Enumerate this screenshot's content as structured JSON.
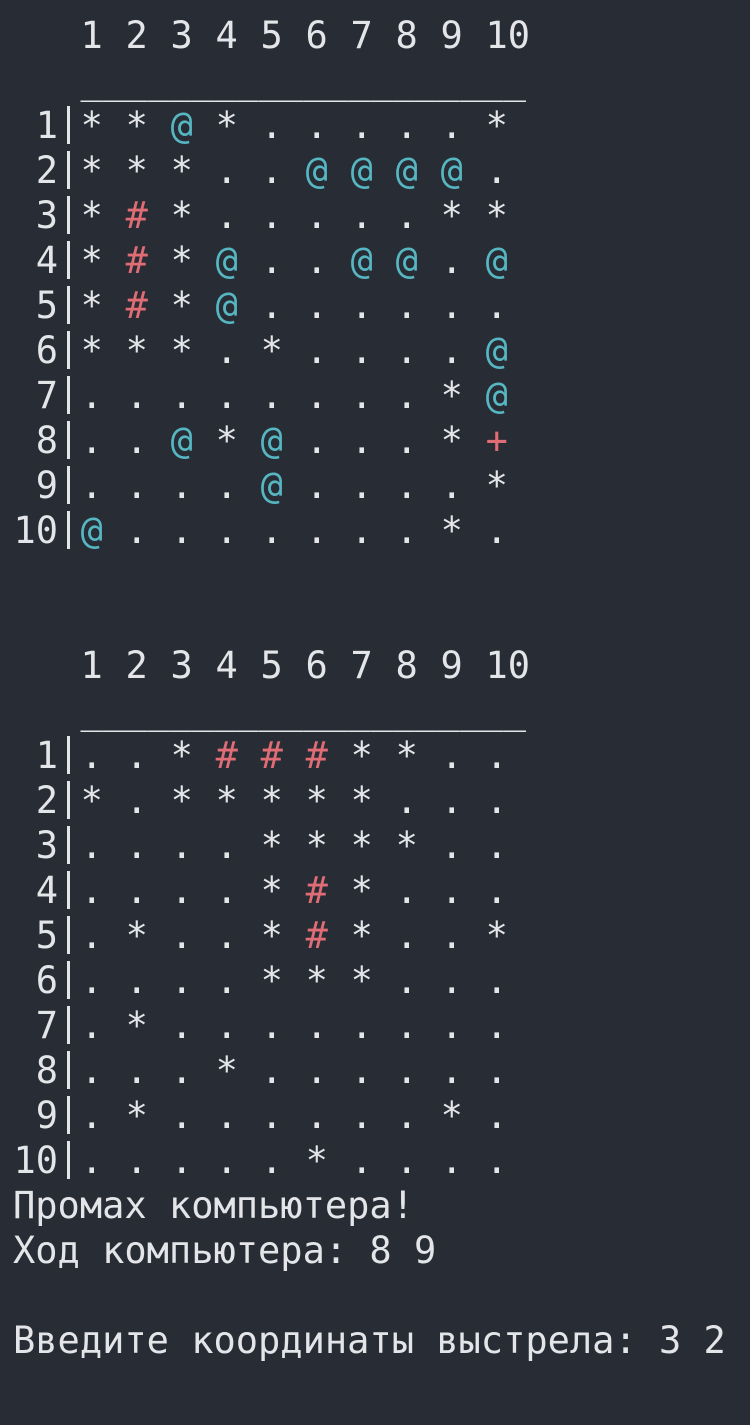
{
  "boards": [
    {
      "header": [
        "1",
        "2",
        "3",
        "4",
        "5",
        "6",
        "7",
        "8",
        "9",
        "10"
      ],
      "separator": "____________________",
      "rows": [
        {
          "label": "1",
          "cells": [
            "*",
            "*",
            "@",
            "*",
            ".",
            ".",
            ".",
            ".",
            ".",
            "*"
          ]
        },
        {
          "label": "2",
          "cells": [
            "*",
            "*",
            "*",
            ".",
            ".",
            "@",
            "@",
            "@",
            "@",
            "."
          ]
        },
        {
          "label": "3",
          "cells": [
            "*",
            "#",
            "*",
            ".",
            ".",
            ".",
            ".",
            ".",
            "*",
            "*"
          ]
        },
        {
          "label": "4",
          "cells": [
            "*",
            "#",
            "*",
            "@",
            ".",
            ".",
            "@",
            "@",
            ".",
            "@"
          ]
        },
        {
          "label": "5",
          "cells": [
            "*",
            "#",
            "*",
            "@",
            ".",
            ".",
            ".",
            ".",
            ".",
            "."
          ]
        },
        {
          "label": "6",
          "cells": [
            "*",
            "*",
            "*",
            ".",
            "*",
            ".",
            ".",
            ".",
            ".",
            "@"
          ]
        },
        {
          "label": "7",
          "cells": [
            ".",
            ".",
            ".",
            ".",
            ".",
            ".",
            ".",
            ".",
            "*",
            "@"
          ]
        },
        {
          "label": "8",
          "cells": [
            ".",
            ".",
            "@",
            "*",
            "@",
            ".",
            ".",
            ".",
            "*",
            "+"
          ]
        },
        {
          "label": "9",
          "cells": [
            ".",
            ".",
            ".",
            ".",
            "@",
            ".",
            ".",
            ".",
            ".",
            "*"
          ]
        },
        {
          "label": "10",
          "cells": [
            "@",
            ".",
            ".",
            ".",
            ".",
            ".",
            ".",
            ".",
            "*",
            "."
          ]
        }
      ]
    },
    {
      "header": [
        "1",
        "2",
        "3",
        "4",
        "5",
        "6",
        "7",
        "8",
        "9",
        "10"
      ],
      "separator": "____________________",
      "rows": [
        {
          "label": "1",
          "cells": [
            ".",
            ".",
            "*",
            "#",
            "#",
            "#",
            "*",
            "*",
            ".",
            "."
          ]
        },
        {
          "label": "2",
          "cells": [
            "*",
            ".",
            "*",
            "*",
            "*",
            "*",
            "*",
            ".",
            ".",
            "."
          ]
        },
        {
          "label": "3",
          "cells": [
            ".",
            ".",
            ".",
            ".",
            "*",
            "*",
            "*",
            "*",
            ".",
            "."
          ]
        },
        {
          "label": "4",
          "cells": [
            ".",
            ".",
            ".",
            ".",
            "*",
            "#",
            "*",
            ".",
            ".",
            "."
          ]
        },
        {
          "label": "5",
          "cells": [
            ".",
            "*",
            ".",
            ".",
            "*",
            "#",
            "*",
            ".",
            ".",
            "*"
          ]
        },
        {
          "label": "6",
          "cells": [
            ".",
            ".",
            ".",
            ".",
            "*",
            "*",
            "*",
            ".",
            ".",
            "."
          ]
        },
        {
          "label": "7",
          "cells": [
            ".",
            "*",
            ".",
            ".",
            ".",
            ".",
            ".",
            ".",
            ".",
            "."
          ]
        },
        {
          "label": "8",
          "cells": [
            ".",
            ".",
            ".",
            "*",
            ".",
            ".",
            ".",
            ".",
            ".",
            "."
          ]
        },
        {
          "label": "9",
          "cells": [
            ".",
            "*",
            ".",
            ".",
            ".",
            ".",
            ".",
            ".",
            "*",
            "."
          ]
        },
        {
          "label": "10",
          "cells": [
            ".",
            ".",
            ".",
            ".",
            ".",
            "*",
            ".",
            ".",
            ".",
            "."
          ]
        }
      ]
    }
  ],
  "messages": [
    "Промах компьютера!",
    "Ход компьютера: 8 9"
  ],
  "prompt": "Введите координаты выстрела: 3 2"
}
